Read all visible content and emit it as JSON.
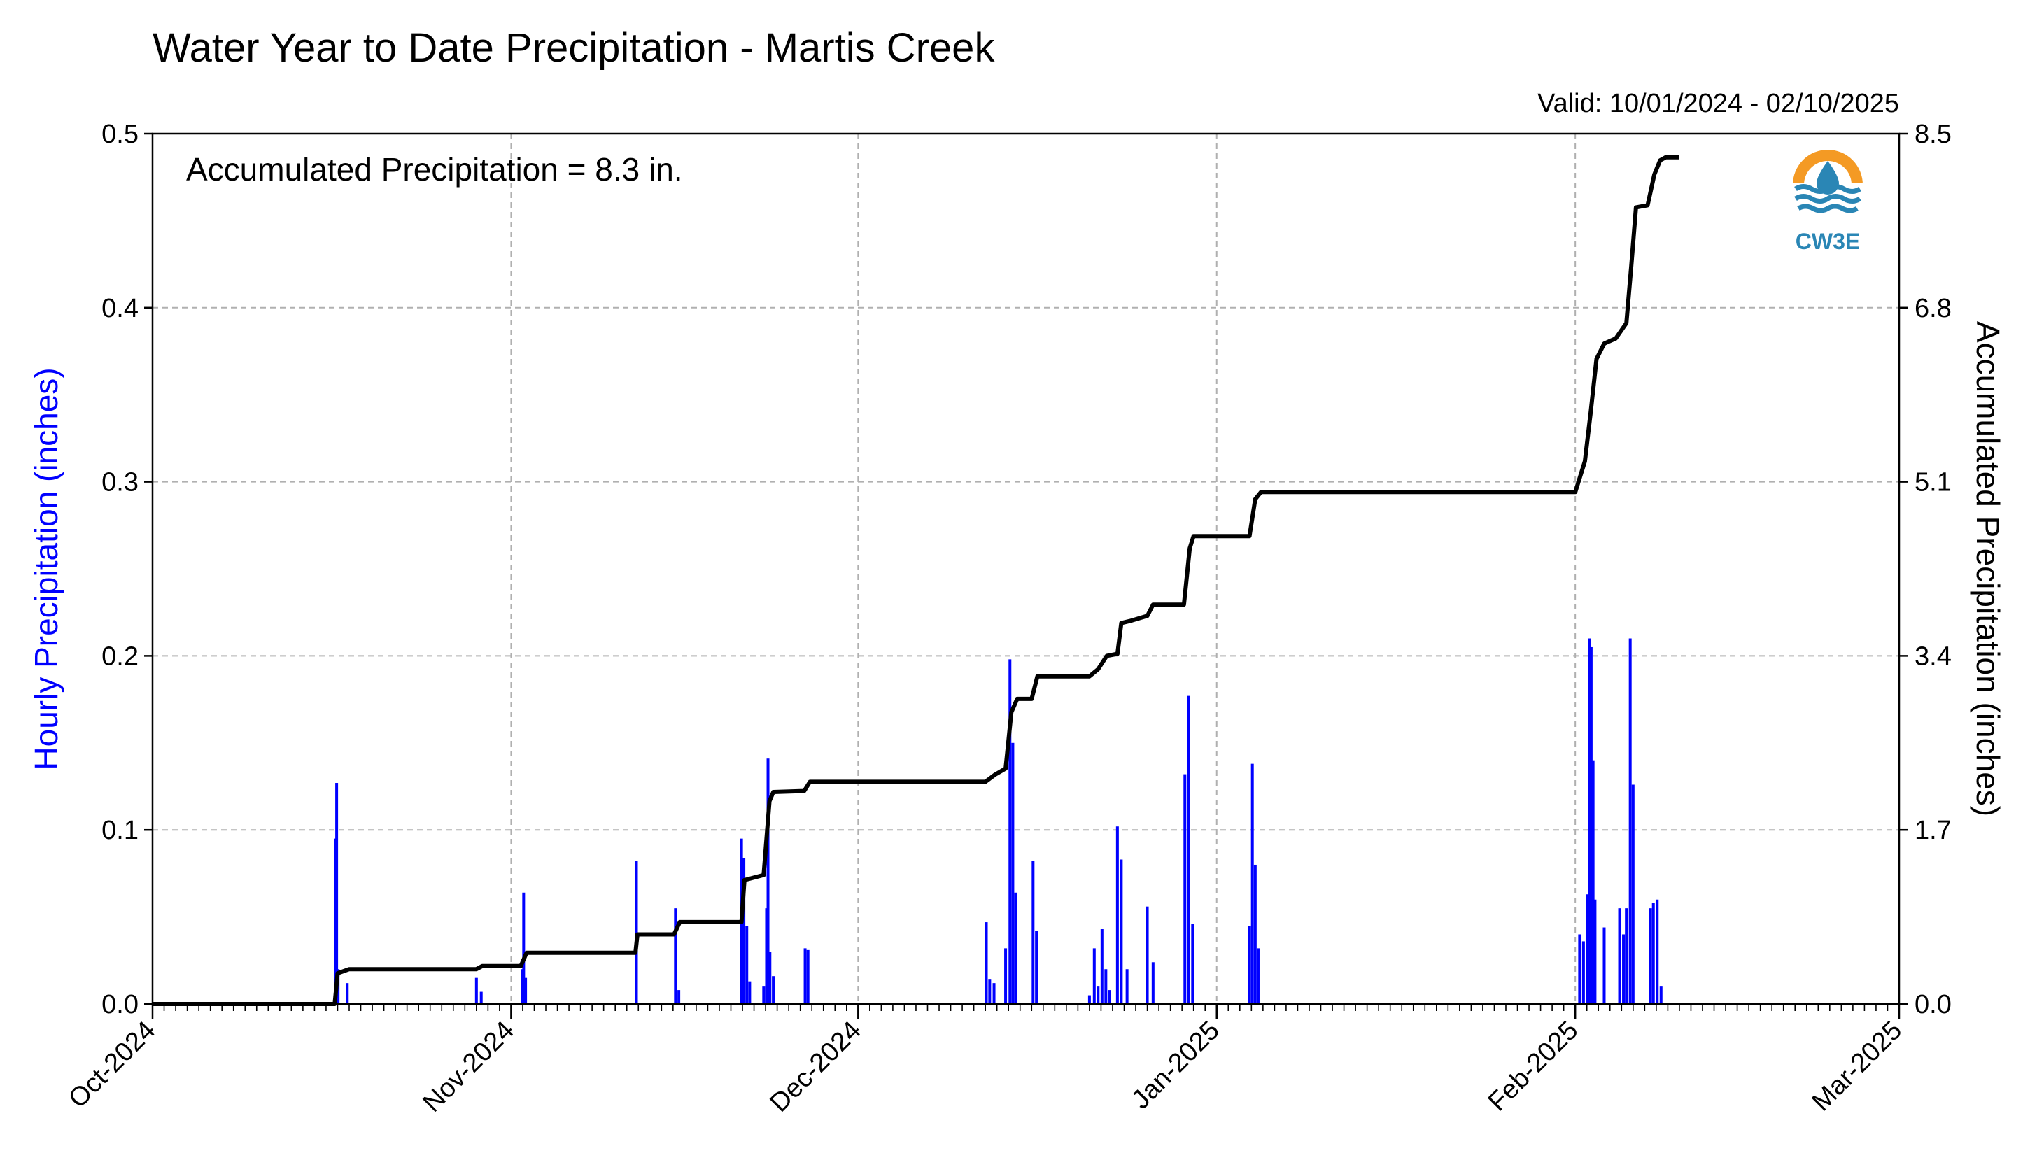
{
  "chart_data": {
    "type": "bar+line",
    "title": "Water Year to Date Precipitation - Martis Creek",
    "valid_text": "Valid: 10/01/2024 - 02/10/2025",
    "annotation": "Accumulated Precipitation = 8.3 in.",
    "ylabel_left": "Hourly Precipitation (inches)",
    "ylabel_right": "Accumulated Precipitation (inches)",
    "logo_text": "CW3E",
    "x_range": [
      "2024-10-01",
      "2025-03-01"
    ],
    "x_ticks": [
      {
        "date": "2024-10-01",
        "label": "Oct-2024"
      },
      {
        "date": "2024-11-01",
        "label": "Nov-2024"
      },
      {
        "date": "2024-12-01",
        "label": "Dec-2024"
      },
      {
        "date": "2025-01-01",
        "label": "Jan-2025"
      },
      {
        "date": "2025-02-01",
        "label": "Feb-2025"
      },
      {
        "date": "2025-03-01",
        "label": "Mar-2025"
      }
    ],
    "ylim_left": [
      0,
      0.5
    ],
    "yticks_left": [
      "0.0",
      "0.1",
      "0.2",
      "0.3",
      "0.4",
      "0.5"
    ],
    "ylim_right": [
      0,
      8.5
    ],
    "yticks_right": [
      "0.0",
      "1.7",
      "3.4",
      "5.1",
      "6.8",
      "8.5"
    ],
    "grid": true,
    "colors": {
      "hourly": "#0000ff",
      "accumulated": "#000000",
      "grid": "#b0b0b0"
    },
    "series": [
      {
        "name": "Hourly Precipitation",
        "type": "bar",
        "points": [
          [
            "2024-10-16T20:00",
            0.095
          ],
          [
            "2024-10-16T22:00",
            0.127
          ],
          [
            "2024-10-17T01:00",
            0.02
          ],
          [
            "2024-10-17T20:00",
            0.012
          ],
          [
            "2024-10-29T00:00",
            0.015
          ],
          [
            "2024-10-29T10:00",
            0.007
          ],
          [
            "2024-11-01T23:00",
            0.02
          ],
          [
            "2024-11-02T02:00",
            0.064
          ],
          [
            "2024-11-02T06:00",
            0.015
          ],
          [
            "2024-11-11T20:00",
            0.082
          ],
          [
            "2024-11-15T05:00",
            0.055
          ],
          [
            "2024-11-15T12:00",
            0.008
          ],
          [
            "2024-11-20T22:00",
            0.095
          ],
          [
            "2024-11-21T03:00",
            0.084
          ],
          [
            "2024-11-21T09:00",
            0.045
          ],
          [
            "2024-11-21T15:00",
            0.013
          ],
          [
            "2024-11-22T20:00",
            0.01
          ],
          [
            "2024-11-23T02:00",
            0.055
          ],
          [
            "2024-11-23T05:00",
            0.141
          ],
          [
            "2024-11-23T09:00",
            0.03
          ],
          [
            "2024-11-23T16:00",
            0.016
          ],
          [
            "2024-11-26T10:00",
            0.032
          ],
          [
            "2024-11-26T16:00",
            0.031
          ],
          [
            "2024-12-12T02:00",
            0.047
          ],
          [
            "2024-12-12T09:00",
            0.014
          ],
          [
            "2024-12-12T18:00",
            0.012
          ],
          [
            "2024-12-13T18:00",
            0.032
          ],
          [
            "2024-12-14T03:00",
            0.198
          ],
          [
            "2024-12-14T09:00",
            0.15
          ],
          [
            "2024-12-14T15:00",
            0.064
          ],
          [
            "2024-12-16T03:00",
            0.082
          ],
          [
            "2024-12-16T10:00",
            0.042
          ],
          [
            "2024-12-21T00:00",
            0.005
          ],
          [
            "2024-12-21T10:00",
            0.032
          ],
          [
            "2024-12-21T18:00",
            0.01
          ],
          [
            "2024-12-22T02:00",
            0.043
          ],
          [
            "2024-12-22T10:00",
            0.02
          ],
          [
            "2024-12-22T18:00",
            0.008
          ],
          [
            "2024-12-23T10:00",
            0.102
          ],
          [
            "2024-12-23T18:00",
            0.083
          ],
          [
            "2024-12-24T06:00",
            0.02
          ],
          [
            "2024-12-26T00:00",
            0.056
          ],
          [
            "2024-12-26T12:00",
            0.024
          ],
          [
            "2024-12-29T06:00",
            0.132
          ],
          [
            "2024-12-29T14:00",
            0.177
          ],
          [
            "2024-12-29T22:00",
            0.046
          ],
          [
            "2025-01-03T20:00",
            0.045
          ],
          [
            "2025-01-04T02:00",
            0.138
          ],
          [
            "2025-01-04T08:00",
            0.08
          ],
          [
            "2025-01-04T14:00",
            0.032
          ],
          [
            "2025-02-01T09:00",
            0.04
          ],
          [
            "2025-02-01T17:00",
            0.036
          ],
          [
            "2025-02-02T01:00",
            0.063
          ],
          [
            "2025-02-02T05:00",
            0.21
          ],
          [
            "2025-02-02T09:00",
            0.205
          ],
          [
            "2025-02-02T13:00",
            0.14
          ],
          [
            "2025-02-02T17:00",
            0.06
          ],
          [
            "2025-02-03T12:00",
            0.044
          ],
          [
            "2025-02-04T20:00",
            0.055
          ],
          [
            "2025-02-05T04:00",
            0.04
          ],
          [
            "2025-02-05T10:00",
            0.055
          ],
          [
            "2025-02-05T18:00",
            0.21
          ],
          [
            "2025-02-06T00:00",
            0.126
          ],
          [
            "2025-02-07T12:00",
            0.055
          ],
          [
            "2025-02-07T18:00",
            0.058
          ],
          [
            "2025-02-08T02:00",
            0.06
          ],
          [
            "2025-02-08T10:00",
            0.01
          ]
        ]
      },
      {
        "name": "Accumulated Precipitation",
        "type": "line",
        "points": [
          [
            "2024-10-01T00:00",
            0.0
          ],
          [
            "2024-10-16T18:00",
            0.0
          ],
          [
            "2024-10-17T00:00",
            0.3
          ],
          [
            "2024-10-18T00:00",
            0.34
          ],
          [
            "2024-10-29T00:00",
            0.34
          ],
          [
            "2024-10-29T12:00",
            0.37
          ],
          [
            "2024-11-01T20:00",
            0.37
          ],
          [
            "2024-11-02T08:00",
            0.5
          ],
          [
            "2024-11-11T18:00",
            0.5
          ],
          [
            "2024-11-11T22:00",
            0.68
          ],
          [
            "2024-11-15T02:00",
            0.68
          ],
          [
            "2024-11-15T14:00",
            0.8
          ],
          [
            "2024-11-20T22:00",
            0.8
          ],
          [
            "2024-11-21T04:00",
            1.21
          ],
          [
            "2024-11-22T20:00",
            1.26
          ],
          [
            "2024-11-23T08:00",
            1.98
          ],
          [
            "2024-11-23T16:00",
            2.07
          ],
          [
            "2024-11-26T08:00",
            2.08
          ],
          [
            "2024-11-26T20:00",
            2.17
          ],
          [
            "2024-12-12T00:00",
            2.17
          ],
          [
            "2024-12-12T20:00",
            2.24
          ],
          [
            "2024-12-13T18:00",
            2.3
          ],
          [
            "2024-12-14T06:00",
            2.85
          ],
          [
            "2024-12-14T18:00",
            2.98
          ],
          [
            "2024-12-16T00:00",
            2.98
          ],
          [
            "2024-12-16T12:00",
            3.2
          ],
          [
            "2024-12-21T00:00",
            3.2
          ],
          [
            "2024-12-21T18:00",
            3.27
          ],
          [
            "2024-12-22T12:00",
            3.4
          ],
          [
            "2024-12-23T10:00",
            3.42
          ],
          [
            "2024-12-23T18:00",
            3.72
          ],
          [
            "2024-12-24T12:00",
            3.74
          ],
          [
            "2024-12-26T00:00",
            3.79
          ],
          [
            "2024-12-26T12:00",
            3.9
          ],
          [
            "2024-12-29T04:00",
            3.9
          ],
          [
            "2024-12-29T16:00",
            4.45
          ],
          [
            "2024-12-30T00:00",
            4.57
          ],
          [
            "2025-01-03T20:00",
            4.57
          ],
          [
            "2025-01-04T08:00",
            4.93
          ],
          [
            "2025-01-04T20:00",
            5.0
          ],
          [
            "2025-02-01T00:00",
            5.0
          ],
          [
            "2025-02-01T20:00",
            5.3
          ],
          [
            "2025-02-02T08:00",
            5.78
          ],
          [
            "2025-02-02T20:00",
            6.3
          ],
          [
            "2025-02-03T12:00",
            6.45
          ],
          [
            "2025-02-04T12:00",
            6.5
          ],
          [
            "2025-02-05T10:00",
            6.65
          ],
          [
            "2025-02-05T20:00",
            7.2
          ],
          [
            "2025-02-06T06:00",
            7.78
          ],
          [
            "2025-02-07T06:00",
            7.8
          ],
          [
            "2025-02-07T20:00",
            8.1
          ],
          [
            "2025-02-08T08:00",
            8.24
          ],
          [
            "2025-02-08T20:00",
            8.27
          ],
          [
            "2025-02-10T00:00",
            8.27
          ]
        ]
      }
    ]
  }
}
